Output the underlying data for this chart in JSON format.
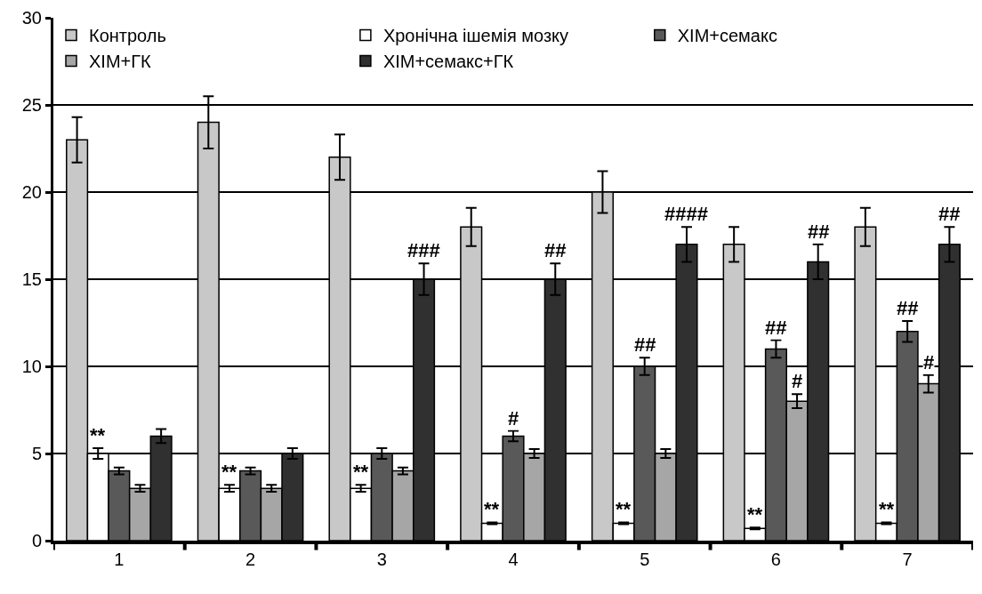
{
  "chart_data": {
    "type": "bar",
    "categories": [
      "1",
      "2",
      "3",
      "4",
      "5",
      "6",
      "7"
    ],
    "series": [
      {
        "name": "Контроль",
        "color": "#c8c8c8",
        "values": [
          23,
          24,
          22,
          18,
          20,
          17,
          18
        ],
        "errors": [
          1.3,
          1.5,
          1.3,
          1.1,
          1.2,
          1.0,
          1.1
        ]
      },
      {
        "name": "Хронічна ішемія мозку",
        "color": "#ffffff",
        "values": [
          5,
          3,
          3,
          1,
          1,
          0.7,
          1
        ],
        "errors": [
          0.3,
          0.2,
          0.2,
          0.05,
          0.05,
          0.05,
          0.05
        ],
        "value_labels": [
          "**",
          "**",
          "**",
          "**",
          "**",
          "**",
          "**"
        ]
      },
      {
        "name": "ХІМ+семакс",
        "color": "#595959",
        "values": [
          4,
          4,
          5,
          6,
          10,
          11,
          12
        ],
        "errors": [
          0.2,
          0.2,
          0.3,
          0.3,
          0.5,
          0.5,
          0.6
        ],
        "value_labels": [
          null,
          null,
          null,
          "#",
          "##",
          "##",
          "##"
        ]
      },
      {
        "name": "ХІМ+ГК",
        "color": "#a6a6a6",
        "values": [
          3,
          3,
          4,
          5,
          5,
          8,
          9
        ],
        "errors": [
          0.2,
          0.2,
          0.2,
          0.25,
          0.25,
          0.4,
          0.5
        ],
        "value_labels": [
          null,
          null,
          null,
          null,
          null,
          "#",
          "#"
        ]
      },
      {
        "name": "ХІМ+семакс+ГК",
        "color": "#303030",
        "values": [
          6,
          5,
          15,
          15,
          17,
          16,
          17
        ],
        "errors": [
          0.4,
          0.3,
          0.9,
          0.9,
          1.0,
          1.0,
          1.0
        ],
        "value_labels": [
          null,
          null,
          "###",
          "##",
          "####",
          "##",
          "##"
        ]
      }
    ],
    "ylim": [
      0,
      30
    ],
    "yticks": [
      0,
      5,
      10,
      15,
      20,
      25,
      30
    ],
    "grid": "y",
    "legend": "top"
  }
}
